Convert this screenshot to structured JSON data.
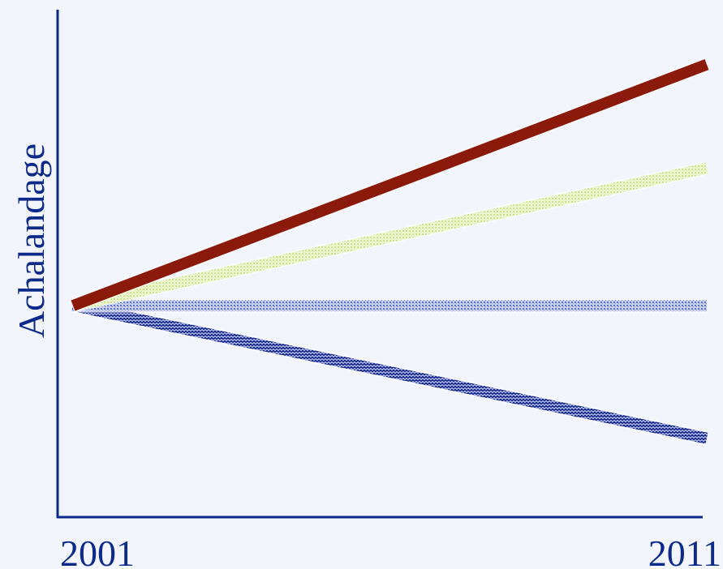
{
  "chart_data": {
    "type": "line",
    "x": [
      2001,
      2011
    ],
    "xticks": [
      "2001",
      "2011"
    ],
    "ylabel": "Achalandage",
    "yticks_shown": false,
    "axis_color": "#0b2a8a",
    "series": [
      {
        "values": [
          0,
          1.0
        ],
        "color": "#8b1a0a",
        "pattern": "solid"
      },
      {
        "values": [
          0,
          0.57
        ],
        "color": "#d4eda0",
        "pattern": "dotted-light"
      },
      {
        "values": [
          0,
          0.0
        ],
        "color": "#7d8fe0",
        "pattern": "dotted-medium"
      },
      {
        "values": [
          0,
          -0.55
        ],
        "color": "#2a3c9a",
        "pattern": "dotted-dark"
      }
    ],
    "ylim": [
      -0.85,
      1.2
    ],
    "grid": false,
    "legend": "none"
  }
}
